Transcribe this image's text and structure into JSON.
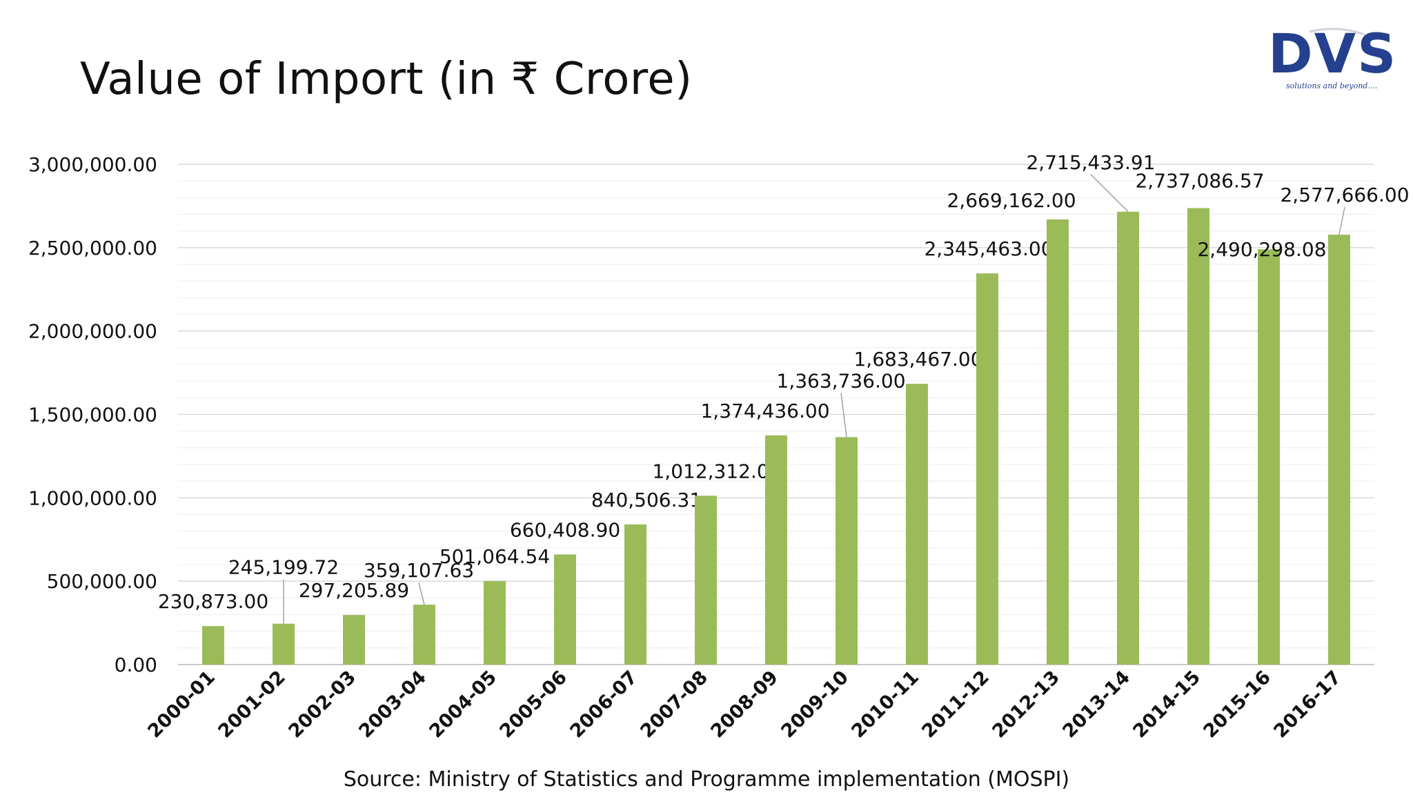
{
  "slide": {
    "title": "Value of Import (in ₹ Crore)",
    "source": "Source: Ministry of Statistics and Programme implementation (MOSPI)"
  },
  "logo": {
    "text": "DVS",
    "tagline": "solutions and beyond....",
    "color": "#25408f"
  },
  "chart_data": {
    "type": "bar",
    "title": "Value of Import (in ₹ Crore)",
    "xlabel": "",
    "ylabel": "",
    "ylim": [
      0,
      3000000
    ],
    "grid": true,
    "legend": "none",
    "bar_color": "#9bbb59",
    "categories": [
      "2000-01",
      "2001-02",
      "2002-03",
      "2003-04",
      "2004-05",
      "2005-06",
      "2006-07",
      "2007-08",
      "2008-09",
      "2009-10",
      "2010-11",
      "2011-12",
      "2012-13",
      "2013-14",
      "2014-15",
      "2015-16",
      "2016-17"
    ],
    "values": [
      230873.0,
      245199.72,
      297205.89,
      359107.63,
      501064.54,
      660408.9,
      840506.31,
      1012312.0,
      1374436.0,
      1363736.0,
      1683467.0,
      2345463.0,
      2669162.0,
      2715433.91,
      2737086.57,
      2490298.08,
      2577666.0
    ],
    "value_labels": [
      "230,873.00",
      "245,199.72",
      "297,205.89",
      "359,107.63",
      "501,064.54",
      "660,408.90",
      "840,506.31",
      "1,012,312.00",
      "1,374,436.00",
      "1,363,736.00",
      "1,683,467.00",
      "2,345,463.00",
      "2,669,162.00",
      "2,715,433.91",
      "2,737,086.57",
      "2,490,298.08",
      "2,577,666.00"
    ],
    "y_ticks": [
      0,
      500000,
      1000000,
      1500000,
      2000000,
      2500000,
      3000000
    ],
    "y_tick_labels": [
      "0.00",
      "500,000.00",
      "1,000,000.00",
      "1,500,000.00",
      "2,000,000.00",
      "2,500,000.00",
      "3,000,000.00"
    ]
  }
}
